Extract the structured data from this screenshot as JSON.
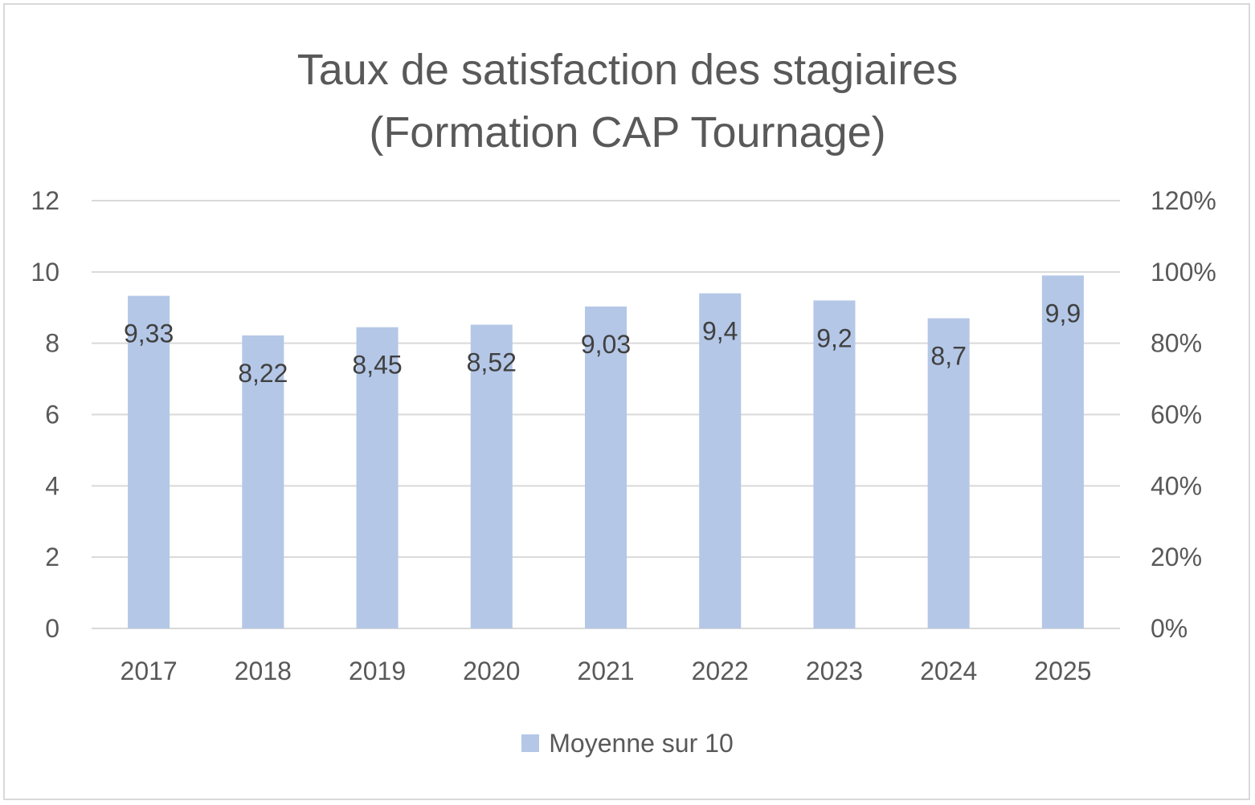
{
  "chart_data": {
    "type": "bar",
    "title": [
      "Taux de satisfaction des stagiaires",
      "(Formation CAP Tournage)"
    ],
    "categories": [
      "2017",
      "2018",
      "2019",
      "2020",
      "2021",
      "2022",
      "2023",
      "2024",
      "2025"
    ],
    "series": [
      {
        "name": "Moyenne sur 10",
        "values": [
          9.33,
          8.22,
          8.45,
          8.52,
          9.03,
          9.4,
          9.2,
          8.7,
          9.9
        ],
        "data_labels": [
          "9,33",
          "8,22",
          "8,45",
          "8,52",
          "9,03",
          "9,4",
          "9,2",
          "8,7",
          "9,9"
        ],
        "color": "#b4c7e7"
      }
    ],
    "y_axis_left": {
      "ylim": [
        0,
        12
      ],
      "ticks": [
        "0",
        "2",
        "4",
        "6",
        "8",
        "10",
        "12"
      ]
    },
    "y_axis_right": {
      "ylim": [
        0,
        1.2
      ],
      "ticks": [
        "0%",
        "20%",
        "40%",
        "60%",
        "80%",
        "100%",
        "120%"
      ]
    },
    "grid": true,
    "gridline_color": "#d9d9d9",
    "legend_position": "bottom"
  }
}
